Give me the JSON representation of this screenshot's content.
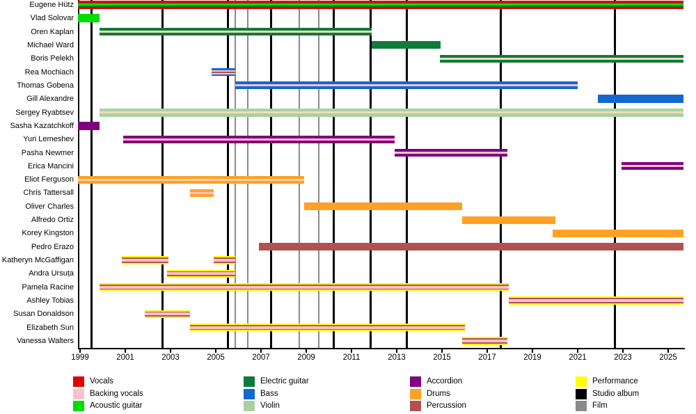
{
  "chart_data": {
    "type": "bar",
    "variant": "gantt-member-timeline",
    "title": "",
    "grid": false,
    "legend_position": "bottom",
    "x_axis": {
      "tick_years": [
        1999,
        2001,
        2003,
        2005,
        2007,
        2009,
        2011,
        2013,
        2015,
        2017,
        2019,
        2021,
        2023,
        2025
      ],
      "range": [
        1998.9,
        2025.7
      ]
    },
    "palette": {
      "vocals": "#e10000",
      "backing_vocals": "#ffc0cb",
      "backing_vocals_cream": "#f0dcba",
      "backing_vocals_peach": "#ffd2a4",
      "acoustic_guitar": "#00dd00",
      "electric_guitar": "#0e7a3c",
      "bass": "#1268cf",
      "violin": "#a9d1a0",
      "accordion": "#800080",
      "drums": "#ffa126",
      "percussion": "#b25151",
      "performance": "#ffff00",
      "studio_album": "#000000",
      "film": "#8a8a8a"
    },
    "members": [
      {
        "name": "Eugene Hütz",
        "segments": [
          {
            "start": 1998.9,
            "end": 2025.7,
            "layers": [
              "vocals",
              "electric_guitar",
              "acoustic_guitar",
              "electric_guitar",
              "vocals"
            ],
            "heights": [
              3,
              1.8,
              3,
              1.8,
              3
            ]
          }
        ]
      },
      {
        "name": "Vlad Solovar",
        "segments": [
          {
            "start": 1998.9,
            "end": 1999.85,
            "layers": [
              "acoustic_guitar"
            ],
            "heights": [
              12
            ]
          }
        ]
      },
      {
        "name": "Oren Kaplan",
        "segments": [
          {
            "start": 1999.85,
            "end": 2011.9,
            "layers": [
              "electric_guitar",
              "backing_vocals_cream",
              "electric_guitar"
            ],
            "heights": [
              4,
              3,
              4
            ]
          }
        ]
      },
      {
        "name": "Michael Ward",
        "segments": [
          {
            "start": 2011.9,
            "end": 2014.95,
            "layers": [
              "electric_guitar"
            ],
            "heights": [
              11
            ]
          }
        ]
      },
      {
        "name": "Boris Pelekh",
        "segments": [
          {
            "start": 2014.9,
            "end": 2025.7,
            "layers": [
              "electric_guitar",
              "backing_vocals_cream",
              "electric_guitar"
            ],
            "heights": [
              4,
              3,
              4
            ]
          }
        ]
      },
      {
        "name": "Rea Mochiach",
        "segments": [
          {
            "start": 2004.8,
            "end": 2005.85,
            "layers": [
              "bass",
              "backing_vocals",
              "percussion",
              "backing_vocals",
              "bass"
            ],
            "heights": [
              2.5,
              2,
              2,
              2,
              2.5
            ]
          }
        ]
      },
      {
        "name": "Thomas Gobena",
        "segments": [
          {
            "start": 2005.85,
            "end": 2021.0,
            "layers": [
              "bass",
              "backing_vocals",
              "bass"
            ],
            "heights": [
              4,
              3,
              4
            ]
          }
        ]
      },
      {
        "name": "Gill Alexandre",
        "segments": [
          {
            "start": 2021.9,
            "end": 2025.7,
            "layers": [
              "bass"
            ],
            "heights": [
              12
            ]
          }
        ]
      },
      {
        "name": "Sergey Ryabtsev",
        "segments": [
          {
            "start": 1999.85,
            "end": 2025.7,
            "layers": [
              "violin",
              "backing_vocals_cream",
              "violin"
            ],
            "heights": [
              4.5,
              3,
              4.5
            ]
          }
        ]
      },
      {
        "name": "Sasha Kazatchkoff",
        "segments": [
          {
            "start": 1998.9,
            "end": 1999.85,
            "layers": [
              "accordion"
            ],
            "heights": [
              12
            ]
          }
        ]
      },
      {
        "name": "Yuri Lemeshev",
        "segments": [
          {
            "start": 2000.9,
            "end": 2012.9,
            "layers": [
              "accordion",
              "backing_vocals",
              "accordion"
            ],
            "heights": [
              4,
              3,
              4
            ]
          }
        ]
      },
      {
        "name": "Pasha Newmer",
        "segments": [
          {
            "start": 2012.9,
            "end": 2017.9,
            "layers": [
              "accordion",
              "backing_vocals",
              "accordion"
            ],
            "heights": [
              4,
              3,
              4
            ]
          }
        ]
      },
      {
        "name": "Erica Mancini",
        "segments": [
          {
            "start": 2022.95,
            "end": 2025.7,
            "layers": [
              "accordion",
              "backing_vocals",
              "accordion"
            ],
            "heights": [
              4,
              3,
              4
            ]
          }
        ]
      },
      {
        "name": "Eliot Ferguson",
        "segments": [
          {
            "start": 1998.9,
            "end": 2008.9,
            "layers": [
              "drums",
              "backing_vocals_peach",
              "drums"
            ],
            "heights": [
              4,
              3,
              4
            ]
          }
        ]
      },
      {
        "name": "Chris Tattersall",
        "segments": [
          {
            "start": 2003.85,
            "end": 2004.9,
            "layers": [
              "drums",
              "backing_vocals",
              "drums"
            ],
            "heights": [
              4,
              3,
              4
            ]
          }
        ]
      },
      {
        "name": "Oliver Charles",
        "segments": [
          {
            "start": 2008.9,
            "end": 2015.9,
            "layers": [
              "drums"
            ],
            "heights": [
              11
            ]
          }
        ]
      },
      {
        "name": "Alfredo Ortiz",
        "segments": [
          {
            "start": 2015.9,
            "end": 2020.0,
            "layers": [
              "drums"
            ],
            "heights": [
              11
            ]
          }
        ]
      },
      {
        "name": "Korey Kingston",
        "segments": [
          {
            "start": 2019.9,
            "end": 2025.7,
            "layers": [
              "drums"
            ],
            "heights": [
              11
            ]
          }
        ]
      },
      {
        "name": "Pedro Erazo",
        "segments": [
          {
            "start": 2006.9,
            "end": 2025.7,
            "layers": [
              "percussion"
            ],
            "heights": [
              11
            ]
          }
        ]
      },
      {
        "name": "Katheryn McGaffigan",
        "segments": [
          {
            "start": 2000.85,
            "end": 2002.9,
            "layers": [
              "performance",
              "percussion",
              "backing_vocals",
              "percussion",
              "performance"
            ],
            "heights": [
              2,
              1.6,
              4,
              1.6,
              2
            ]
          },
          {
            "start": 2004.9,
            "end": 2005.85,
            "layers": [
              "performance",
              "percussion",
              "backing_vocals",
              "percussion",
              "performance"
            ],
            "heights": [
              2,
              1.6,
              4,
              1.6,
              2
            ]
          }
        ]
      },
      {
        "name": "Andra Ursuța",
        "segments": [
          {
            "start": 2002.85,
            "end": 2005.85,
            "layers": [
              "performance",
              "percussion",
              "backing_vocals",
              "percussion",
              "performance"
            ],
            "heights": [
              2,
              1.6,
              4,
              1.6,
              2
            ]
          }
        ]
      },
      {
        "name": "Pamela Racine",
        "segments": [
          {
            "start": 1999.85,
            "end": 2017.95,
            "layers": [
              "performance",
              "percussion",
              "backing_vocals",
              "percussion",
              "performance"
            ],
            "heights": [
              2,
              1.6,
              4,
              1.6,
              2
            ]
          }
        ]
      },
      {
        "name": "Ashley Tobias",
        "segments": [
          {
            "start": 2017.95,
            "end": 2025.7,
            "layers": [
              "performance",
              "percussion",
              "backing_vocals",
              "percussion",
              "performance"
            ],
            "heights": [
              2,
              1.6,
              4,
              1.6,
              2
            ]
          }
        ]
      },
      {
        "name": "Susan Donaldson",
        "segments": [
          {
            "start": 2001.85,
            "end": 2003.85,
            "layers": [
              "performance",
              "percussion",
              "backing_vocals",
              "percussion",
              "performance"
            ],
            "heights": [
              2,
              1.6,
              4,
              1.6,
              2
            ]
          }
        ]
      },
      {
        "name": "Elizabeth Sun",
        "segments": [
          {
            "start": 2003.85,
            "end": 2016.0,
            "layers": [
              "performance",
              "percussion",
              "backing_vocals",
              "percussion",
              "performance"
            ],
            "heights": [
              2,
              1.6,
              4,
              1.6,
              2
            ]
          }
        ]
      },
      {
        "name": "Vanessa Walters",
        "segments": [
          {
            "start": 2015.9,
            "end": 2017.9,
            "layers": [
              "performance",
              "percussion",
              "backing_vocals",
              "percussion",
              "performance"
            ],
            "heights": [
              2,
              1.6,
              4,
              1.6,
              2
            ]
          }
        ]
      }
    ],
    "events": {
      "studio_albums": [
        1999.5,
        2002.65,
        2005.55,
        2007.45,
        2010.2,
        2011.85,
        2013.45,
        2017.6,
        2022.65
      ],
      "films": [
        2005.85,
        2006.4,
        2008.7,
        2009.55
      ]
    },
    "legend": [
      {
        "label": "Vocals",
        "color_key": "vocals"
      },
      {
        "label": "Backing vocals",
        "color_key": "backing_vocals"
      },
      {
        "label": "Acoustic guitar",
        "color_key": "acoustic_guitar"
      },
      {
        "label": "Electric guitar",
        "color_key": "electric_guitar"
      },
      {
        "label": "Bass",
        "color_key": "bass"
      },
      {
        "label": "Violin",
        "color_key": "violin"
      },
      {
        "label": "Accordion",
        "color_key": "accordion"
      },
      {
        "label": "Drums",
        "color_key": "drums"
      },
      {
        "label": "Percussion",
        "color_key": "percussion"
      },
      {
        "label": "Performance",
        "color_key": "performance"
      },
      {
        "label": "Studio album",
        "color_key": "studio_album"
      },
      {
        "label": "Film",
        "color_key": "film"
      }
    ]
  }
}
